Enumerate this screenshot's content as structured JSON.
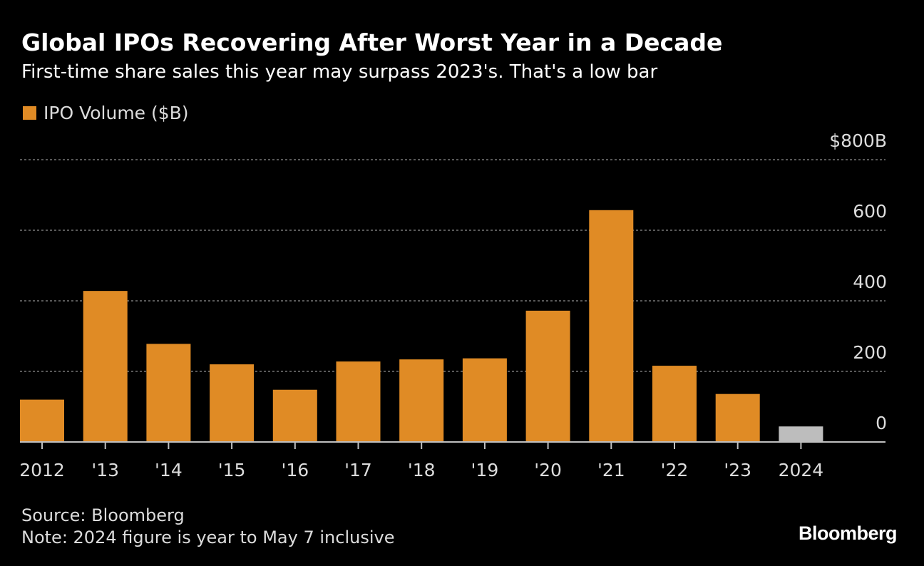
{
  "title": "Global IPOs Recovering After Worst Year in a Decade",
  "subtitle": "First-time share sales this year may surpass 2023's. That's a low bar",
  "legend": {
    "label": "IPO Volume ($B)",
    "color": "#E08B25"
  },
  "footer": {
    "source": "Source: Bloomberg",
    "note": "Note: 2024 figure is year to May 7 inclusive"
  },
  "brand": "Bloomberg",
  "colors": {
    "bar": "#E08B25",
    "bar_partial": "#BDBDBD",
    "grid": "#777777",
    "axis": "#bfbfbf",
    "background": "#000000"
  },
  "chart_data": {
    "type": "bar",
    "categories": [
      "2012",
      "'13",
      "'14",
      "'15",
      "'16",
      "'17",
      "'18",
      "'19",
      "'20",
      "'21",
      "'22",
      "'23",
      "2024"
    ],
    "series": [
      {
        "name": "IPO Volume ($B)",
        "values": [
          120,
          428,
          278,
          220,
          148,
          228,
          234,
          237,
          372,
          657,
          216,
          136,
          44
        ]
      }
    ],
    "highlight_last_category_color": "#BDBDBD",
    "ylim": [
      0,
      800
    ],
    "yticks": [
      0,
      200,
      400,
      600,
      800
    ],
    "ytick_labels": [
      "0",
      "200",
      "400",
      "600",
      "$800B"
    ],
    "y_axis_position": "right",
    "grid": true,
    "legend_position": "top-left"
  }
}
